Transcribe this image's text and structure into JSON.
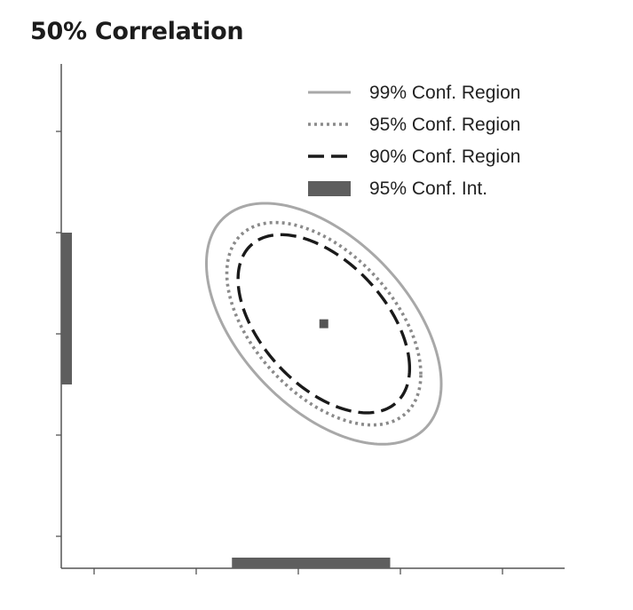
{
  "title": "50% Correlation",
  "chart_data": {
    "type": "scatter",
    "title": "50% Correlation",
    "xlabel": "",
    "ylabel": "",
    "xlim": [
      -3,
      3
    ],
    "ylim": [
      -3,
      3
    ],
    "grid": false,
    "correlation": -0.5,
    "point_estimate": {
      "x": 0.25,
      "y": 0.1
    },
    "regions": [
      {
        "name": "99% Conf. Region",
        "style": "solid",
        "color": "#a8a8a8",
        "sx": 1.15,
        "sy": 1.19
      },
      {
        "name": "95% Conf. Region",
        "style": "dotted",
        "color": "#8a8a8a",
        "sx": 0.95,
        "sy": 1.0
      },
      {
        "name": "90% Conf. Region",
        "style": "dashed",
        "color": "#1a1a1a",
        "sx": 0.84,
        "sy": 0.88
      }
    ],
    "intervals": {
      "name": "95% Conf. Int.",
      "color": "#5e5e5e",
      "x": [
        -0.65,
        0.9
      ],
      "y": [
        -0.5,
        1.0
      ]
    },
    "legend": {
      "position": "top-right",
      "entries": [
        {
          "label": "99% Conf. Region",
          "style": "solid",
          "color": "#a8a8a8"
        },
        {
          "label": "95% Conf. Region",
          "style": "dotted",
          "color": "#8a8a8a"
        },
        {
          "label": "90% Conf. Region",
          "style": "dashed",
          "color": "#1a1a1a"
        },
        {
          "label": "95% Conf. Int.",
          "style": "bar",
          "color": "#5e5e5e"
        }
      ]
    }
  }
}
